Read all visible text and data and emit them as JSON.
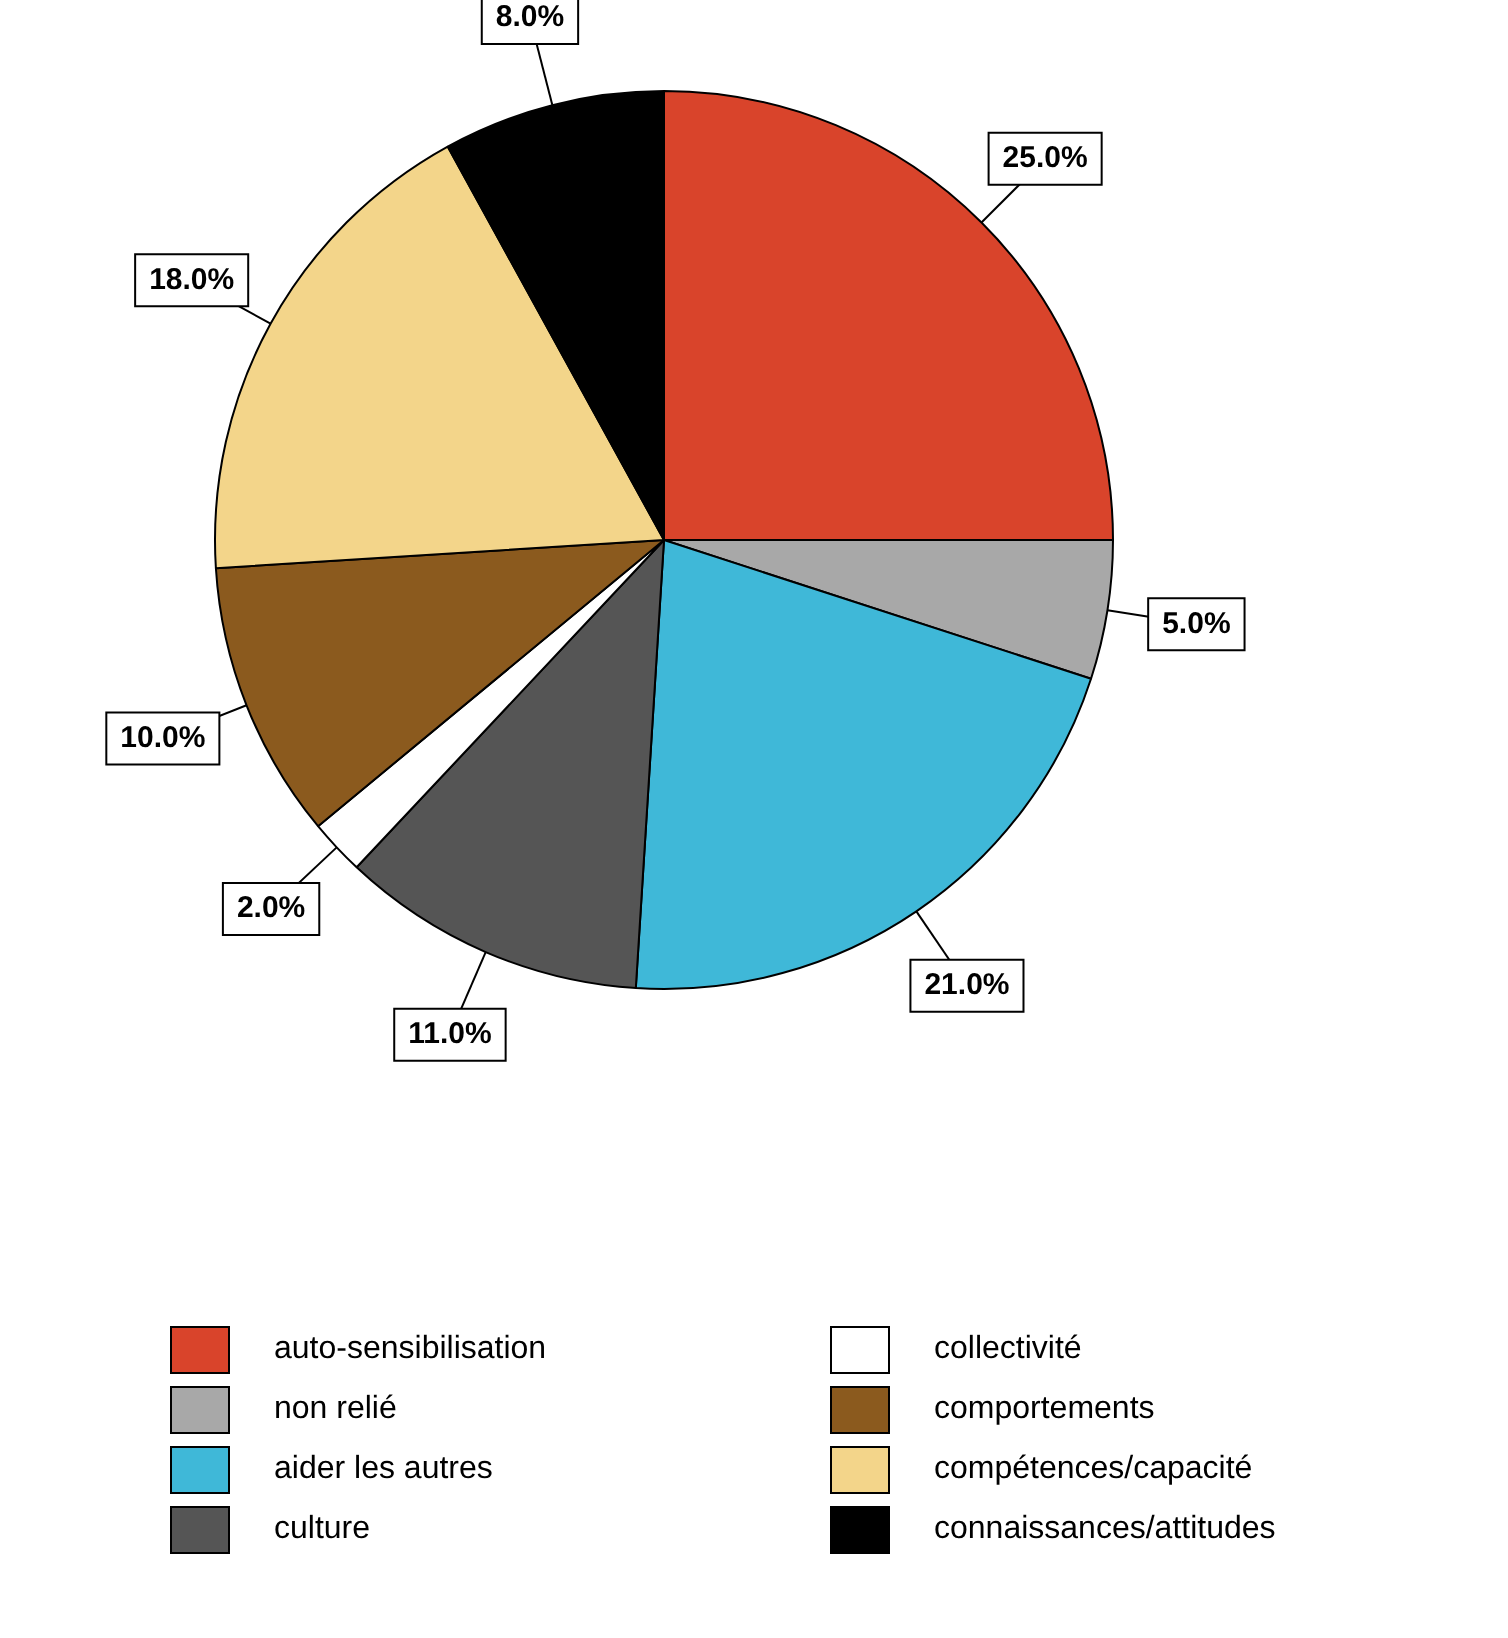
{
  "chart_data": {
    "type": "pie",
    "categories": [
      "auto-sensibilisation",
      "non relié",
      "aider les autres",
      "culture",
      "collectivité",
      "comportements",
      "compétences/capacité",
      "connaissances/attitudes"
    ],
    "values": [
      25,
      5,
      21,
      11,
      2,
      10,
      18,
      8
    ],
    "value_labels": [
      "25.0%",
      "5.0%",
      "21.0%",
      "11.0%",
      "2.0%",
      "10.0%",
      "18.0%",
      "8.0%"
    ],
    "colors": [
      "#d9442b",
      "#a8a8a8",
      "#3fb8d8",
      "#555555",
      "#ffffff",
      "#8b5a1e",
      "#f3d58a",
      "#000000"
    ],
    "legend": "bottom"
  }
}
